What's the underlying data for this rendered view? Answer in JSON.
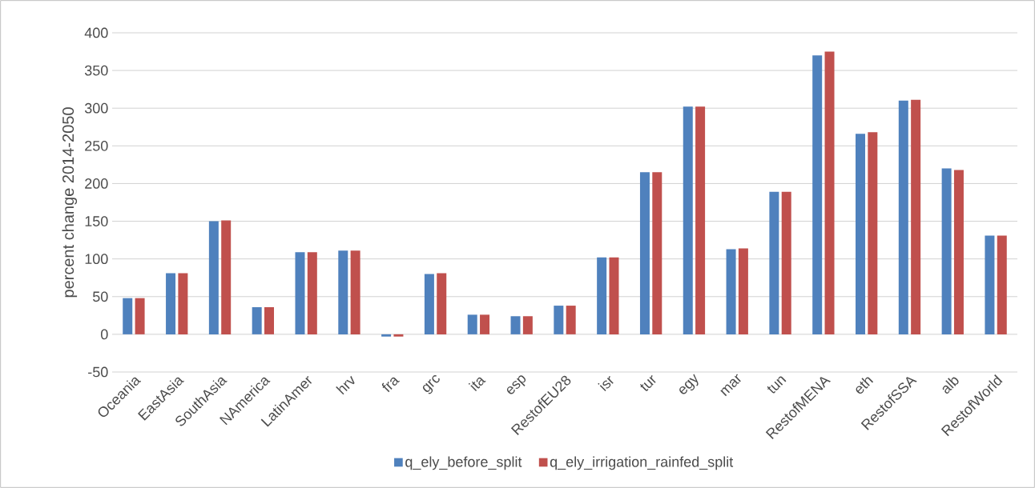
{
  "chart_data": {
    "type": "bar",
    "ylabel": "percent change 2014-2050",
    "categories": [
      "Oceania",
      "EastAsia",
      "SouthAsia",
      "NAmerica",
      "LatinAmer",
      "hrv",
      "fra",
      "grc",
      "ita",
      "esp",
      "RestofEU28",
      "isr",
      "tur",
      "egy",
      "mar",
      "tun",
      "RestofMENA",
      "eth",
      "RestofSSA",
      "alb",
      "RestofWorld"
    ],
    "series": [
      {
        "name": "q_ely_before_split",
        "color": "#4f81bd",
        "values": [
          48,
          81,
          150,
          36,
          109,
          111,
          -3,
          80,
          26,
          24,
          38,
          102,
          215,
          302,
          113,
          189,
          370,
          266,
          310,
          220,
          131
        ]
      },
      {
        "name": "q_ely_irrigation_rainfed_split",
        "color": "#c0504d",
        "values": [
          48,
          81,
          151,
          36,
          109,
          111,
          -3,
          81,
          26,
          24,
          38,
          102,
          215,
          302,
          114,
          189,
          375,
          268,
          311,
          218,
          131
        ]
      }
    ],
    "ylim": [
      -50,
      400
    ],
    "yticks": [
      -50,
      0,
      50,
      100,
      150,
      200,
      250,
      300,
      350,
      400
    ],
    "grid": "y",
    "legend": "bottom"
  }
}
